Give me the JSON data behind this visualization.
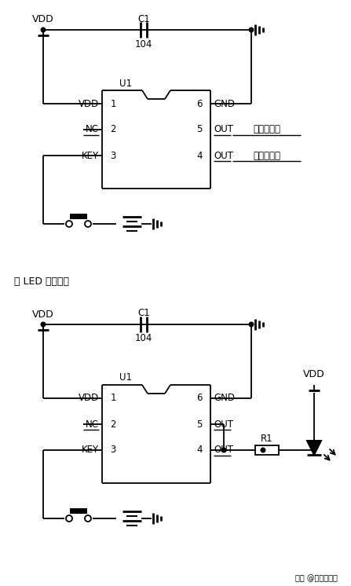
{
  "bg_color": "#ffffff",
  "fig_width": 4.47,
  "fig_height": 7.46,
  "dpi": 100,
  "section_label": "接 LED 应用图：",
  "watermark": "知乎 @丽晶微电子",
  "low_out": "低电平输出"
}
